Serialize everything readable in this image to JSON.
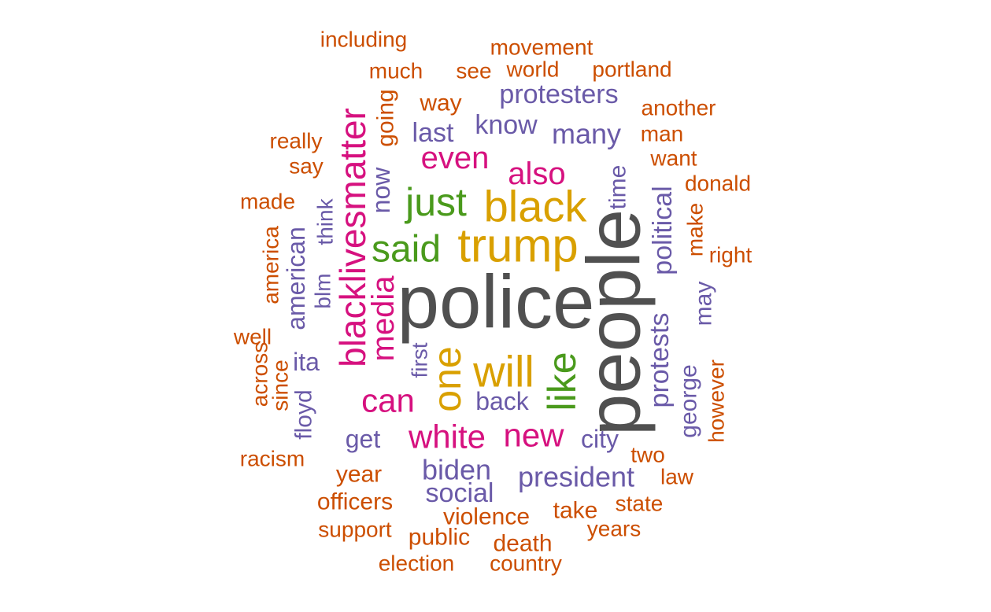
{
  "palette": {
    "dark_gray": "#505050",
    "gold": "#d9a000",
    "green": "#4a9a1c",
    "magenta": "#d6117f",
    "purple": "#6a5aa8",
    "orange": "#cc4e00"
  },
  "words": [
    {
      "text": "police",
      "color": "dark_gray"
    },
    {
      "text": "people",
      "color": "dark_gray"
    },
    {
      "text": "trump",
      "color": "gold"
    },
    {
      "text": "black",
      "color": "gold"
    },
    {
      "text": "will",
      "color": "gold"
    },
    {
      "text": "one",
      "color": "gold"
    },
    {
      "text": "just",
      "color": "green"
    },
    {
      "text": "said",
      "color": "green"
    },
    {
      "text": "like",
      "color": "green"
    },
    {
      "text": "blacklivesmatter",
      "color": "magenta"
    },
    {
      "text": "media",
      "color": "magenta"
    },
    {
      "text": "even",
      "color": "magenta"
    },
    {
      "text": "also",
      "color": "magenta"
    },
    {
      "text": "can",
      "color": "magenta"
    },
    {
      "text": "white",
      "color": "magenta"
    },
    {
      "text": "new",
      "color": "magenta"
    },
    {
      "text": "many",
      "color": "purple"
    },
    {
      "text": "know",
      "color": "purple"
    },
    {
      "text": "last",
      "color": "purple"
    },
    {
      "text": "protesters",
      "color": "purple"
    },
    {
      "text": "now",
      "color": "purple"
    },
    {
      "text": "going",
      "color": "orange"
    },
    {
      "text": "time",
      "color": "purple"
    },
    {
      "text": "political",
      "color": "purple"
    },
    {
      "text": "protests",
      "color": "purple"
    },
    {
      "text": "george",
      "color": "purple"
    },
    {
      "text": "may",
      "color": "purple"
    },
    {
      "text": "blm",
      "color": "purple"
    },
    {
      "text": "think",
      "color": "purple"
    },
    {
      "text": "american",
      "color": "purple"
    },
    {
      "text": "ita",
      "color": "purple"
    },
    {
      "text": "floyd",
      "color": "purple"
    },
    {
      "text": "first",
      "color": "purple"
    },
    {
      "text": "back",
      "color": "purple"
    },
    {
      "text": "city",
      "color": "purple"
    },
    {
      "text": "get",
      "color": "purple"
    },
    {
      "text": "biden",
      "color": "purple"
    },
    {
      "text": "president",
      "color": "purple"
    },
    {
      "text": "social",
      "color": "purple"
    },
    {
      "text": "including",
      "color": "orange"
    },
    {
      "text": "movement",
      "color": "orange"
    },
    {
      "text": "much",
      "color": "orange"
    },
    {
      "text": "see",
      "color": "orange"
    },
    {
      "text": "world",
      "color": "orange"
    },
    {
      "text": "portland",
      "color": "orange"
    },
    {
      "text": "way",
      "color": "orange"
    },
    {
      "text": "another",
      "color": "orange"
    },
    {
      "text": "really",
      "color": "orange"
    },
    {
      "text": "man",
      "color": "orange"
    },
    {
      "text": "say",
      "color": "orange"
    },
    {
      "text": "want",
      "color": "orange"
    },
    {
      "text": "donald",
      "color": "orange"
    },
    {
      "text": "made",
      "color": "orange"
    },
    {
      "text": "make",
      "color": "orange"
    },
    {
      "text": "right",
      "color": "orange"
    },
    {
      "text": "america",
      "color": "orange"
    },
    {
      "text": "well",
      "color": "orange"
    },
    {
      "text": "across",
      "color": "orange"
    },
    {
      "text": "since",
      "color": "orange"
    },
    {
      "text": "however",
      "color": "orange"
    },
    {
      "text": "racism",
      "color": "orange"
    },
    {
      "text": "two",
      "color": "orange"
    },
    {
      "text": "year",
      "color": "orange"
    },
    {
      "text": "law",
      "color": "orange"
    },
    {
      "text": "officers",
      "color": "orange"
    },
    {
      "text": "state",
      "color": "orange"
    },
    {
      "text": "take",
      "color": "orange"
    },
    {
      "text": "violence",
      "color": "orange"
    },
    {
      "text": "support",
      "color": "orange"
    },
    {
      "text": "years",
      "color": "orange"
    },
    {
      "text": "public",
      "color": "orange"
    },
    {
      "text": "death",
      "color": "orange"
    },
    {
      "text": "election",
      "color": "orange"
    },
    {
      "text": "country",
      "color": "orange"
    }
  ]
}
